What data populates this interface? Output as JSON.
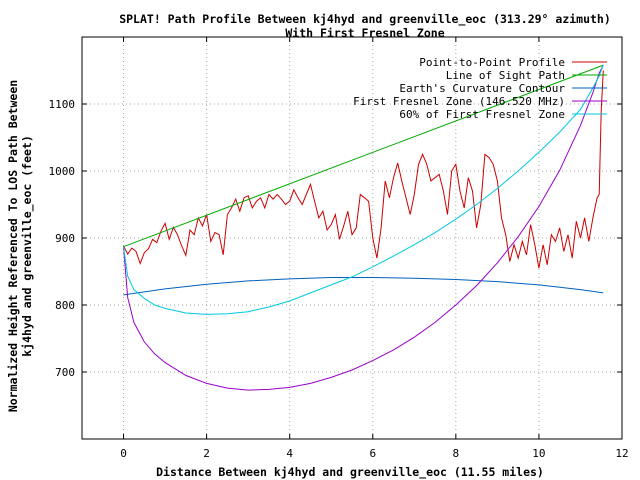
{
  "chart_data": {
    "type": "line",
    "title": "SPLAT! Path Profile Between kj4hyd and greenville_eoc (313.29° azimuth)",
    "subtitle": "With First Fresnel Zone",
    "xlabel": "Distance Between kj4hyd and greenville_eoc (11.55 miles)",
    "ylabel_line1": "Normalized Height Referenced To LOS Path Between",
    "ylabel_line2": "kj4hyd and greenville_eoc (feet)",
    "xlim": [
      -1,
      12
    ],
    "ylim": [
      600,
      1200
    ],
    "x_ticks": [
      0,
      2,
      4,
      6,
      8,
      10,
      12
    ],
    "y_ticks": [
      700,
      800,
      900,
      1000,
      1100
    ],
    "grid": true,
    "legend_position": "top-right",
    "series": [
      {
        "name": "Point-to-Point Profile",
        "color": "#cc0000",
        "x": [
          0,
          0.1,
          0.2,
          0.3,
          0.4,
          0.5,
          0.6,
          0.7,
          0.8,
          0.9,
          1.0,
          1.1,
          1.2,
          1.3,
          1.4,
          1.5,
          1.6,
          1.7,
          1.8,
          1.9,
          2.0,
          2.1,
          2.2,
          2.3,
          2.4,
          2.5,
          2.6,
          2.7,
          2.8,
          2.9,
          3.0,
          3.1,
          3.2,
          3.3,
          3.4,
          3.5,
          3.6,
          3.7,
          3.8,
          3.9,
          4.0,
          4.1,
          4.2,
          4.3,
          4.4,
          4.5,
          4.6,
          4.7,
          4.8,
          4.9,
          5.0,
          5.1,
          5.2,
          5.3,
          5.4,
          5.5,
          5.6,
          5.7,
          5.8,
          5.9,
          6.0,
          6.1,
          6.2,
          6.3,
          6.4,
          6.5,
          6.6,
          6.7,
          6.8,
          6.9,
          7.0,
          7.1,
          7.2,
          7.3,
          7.4,
          7.5,
          7.6,
          7.7,
          7.8,
          7.9,
          8.0,
          8.1,
          8.2,
          8.3,
          8.4,
          8.5,
          8.6,
          8.7,
          8.8,
          8.9,
          9.0,
          9.1,
          9.2,
          9.3,
          9.4,
          9.5,
          9.6,
          9.7,
          9.8,
          9.9,
          10.0,
          10.1,
          10.2,
          10.3,
          10.4,
          10.5,
          10.6,
          10.7,
          10.8,
          10.9,
          11.0,
          11.1,
          11.2,
          11.3,
          11.4,
          11.45,
          11.5,
          11.55
        ],
        "y": [
          888,
          876,
          885,
          880,
          862,
          878,
          884,
          898,
          893,
          910,
          922,
          898,
          916,
          905,
          888,
          874,
          912,
          905,
          930,
          918,
          935,
          895,
          908,
          905,
          875,
          935,
          945,
          958,
          940,
          960,
          963,
          945,
          955,
          960,
          945,
          965,
          958,
          965,
          958,
          950,
          955,
          972,
          960,
          950,
          965,
          980,
          955,
          930,
          940,
          912,
          920,
          935,
          898,
          918,
          940,
          905,
          915,
          965,
          960,
          955,
          900,
          870,
          915,
          985,
          960,
          990,
          1012,
          985,
          960,
          935,
          965,
          1010,
          1025,
          1010,
          985,
          990,
          995,
          970,
          935,
          1000,
          1010,
          970,
          945,
          990,
          970,
          915,
          950,
          1025,
          1020,
          1010,
          985,
          930,
          905,
          865,
          890,
          870,
          895,
          875,
          920,
          890,
          855,
          890,
          860,
          905,
          895,
          915,
          880,
          905,
          870,
          925,
          900,
          930,
          895,
          930,
          960,
          965,
          1090,
          1150
        ]
      },
      {
        "name": "Line of Sight Path",
        "color": "#00aa00",
        "x": [
          0,
          11.55
        ],
        "y": [
          887,
          1158
        ]
      },
      {
        "name": "Earth's Curvature Contour",
        "color": "#0060c0",
        "x": [
          0,
          1,
          2,
          3,
          4,
          5,
          6,
          7,
          8,
          9,
          10,
          11,
          11.55
        ],
        "y": [
          815,
          824,
          831,
          836,
          839,
          841,
          841,
          840,
          838,
          835,
          830,
          823,
          818
        ]
      },
      {
        "name": "First Fresnel Zone (146.520 MHz)",
        "color": "#9900cc",
        "x": [
          0,
          0.1,
          0.25,
          0.5,
          0.75,
          1.0,
          1.5,
          2.0,
          2.5,
          3.0,
          3.5,
          4.0,
          4.5,
          5.0,
          5.5,
          6.0,
          6.5,
          7.0,
          7.5,
          8.0,
          8.5,
          9.0,
          9.5,
          10.0,
          10.5,
          11.0,
          11.3,
          11.45,
          11.55
        ],
        "y": [
          887,
          811,
          774,
          745,
          727,
          714,
          695,
          683,
          676,
          673,
          674,
          677,
          683,
          692,
          703,
          717,
          733,
          752,
          774,
          800,
          829,
          863,
          902,
          947,
          1001,
          1068,
          1117,
          1146,
          1158
        ]
      },
      {
        "name": "60% of First Fresnel Zone",
        "color": "#00c8e0",
        "x": [
          0,
          0.1,
          0.25,
          0.5,
          0.75,
          1.0,
          1.5,
          2.0,
          2.5,
          3.0,
          3.5,
          4.0,
          4.5,
          5.0,
          5.5,
          6.0,
          6.5,
          7.0,
          7.5,
          8.0,
          8.5,
          9.0,
          9.5,
          10.0,
          10.5,
          11.0,
          11.3,
          11.45,
          11.55
        ],
        "y": [
          887,
          843,
          823,
          810,
          800,
          795,
          788,
          786,
          787,
          790,
          797,
          806,
          818,
          830,
          842,
          857,
          873,
          890,
          908,
          928,
          950,
          974,
          1000,
          1028,
          1058,
          1092,
          1124,
          1142,
          1158
        ]
      }
    ]
  }
}
